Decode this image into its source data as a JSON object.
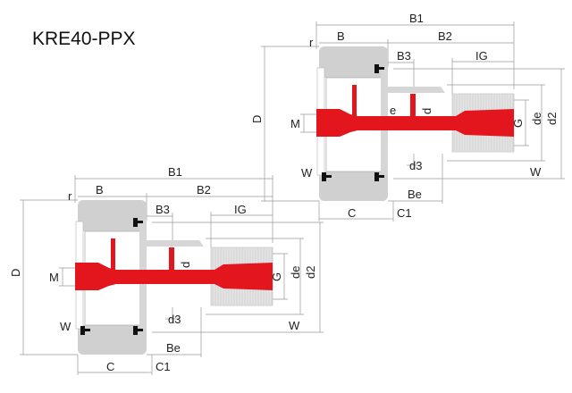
{
  "title": "KRE40-PPX",
  "colors": {
    "shaft": "#e3161e",
    "roller": "#d0d0d0",
    "stud": "#d6d6d6",
    "seal": "#111111",
    "dimension_lines": "#999999"
  },
  "diagrams": [
    {
      "labels": {
        "B1": "B1",
        "B": "B",
        "r": "r",
        "B2": "B2",
        "B3": "B3",
        "IG": "IG",
        "D": "D",
        "M": "M",
        "e": "e",
        "d": "d",
        "G": "G",
        "de": "de",
        "d2": "d2",
        "d3": "d3",
        "W_left": "W",
        "W_right": "W",
        "Be": "Be",
        "C": "C",
        "C1": "C1"
      }
    },
    {
      "labels": {
        "B1": "B1",
        "B": "B",
        "r": "r",
        "B2": "B2",
        "B3": "B3",
        "IG": "IG",
        "D": "D",
        "M": "M",
        "d": "d",
        "G": "G",
        "de": "de",
        "d2": "d2",
        "d3": "d3",
        "W_left": "W",
        "W_right": "W",
        "Be": "Be",
        "C": "C",
        "C1": "C1"
      }
    }
  ]
}
